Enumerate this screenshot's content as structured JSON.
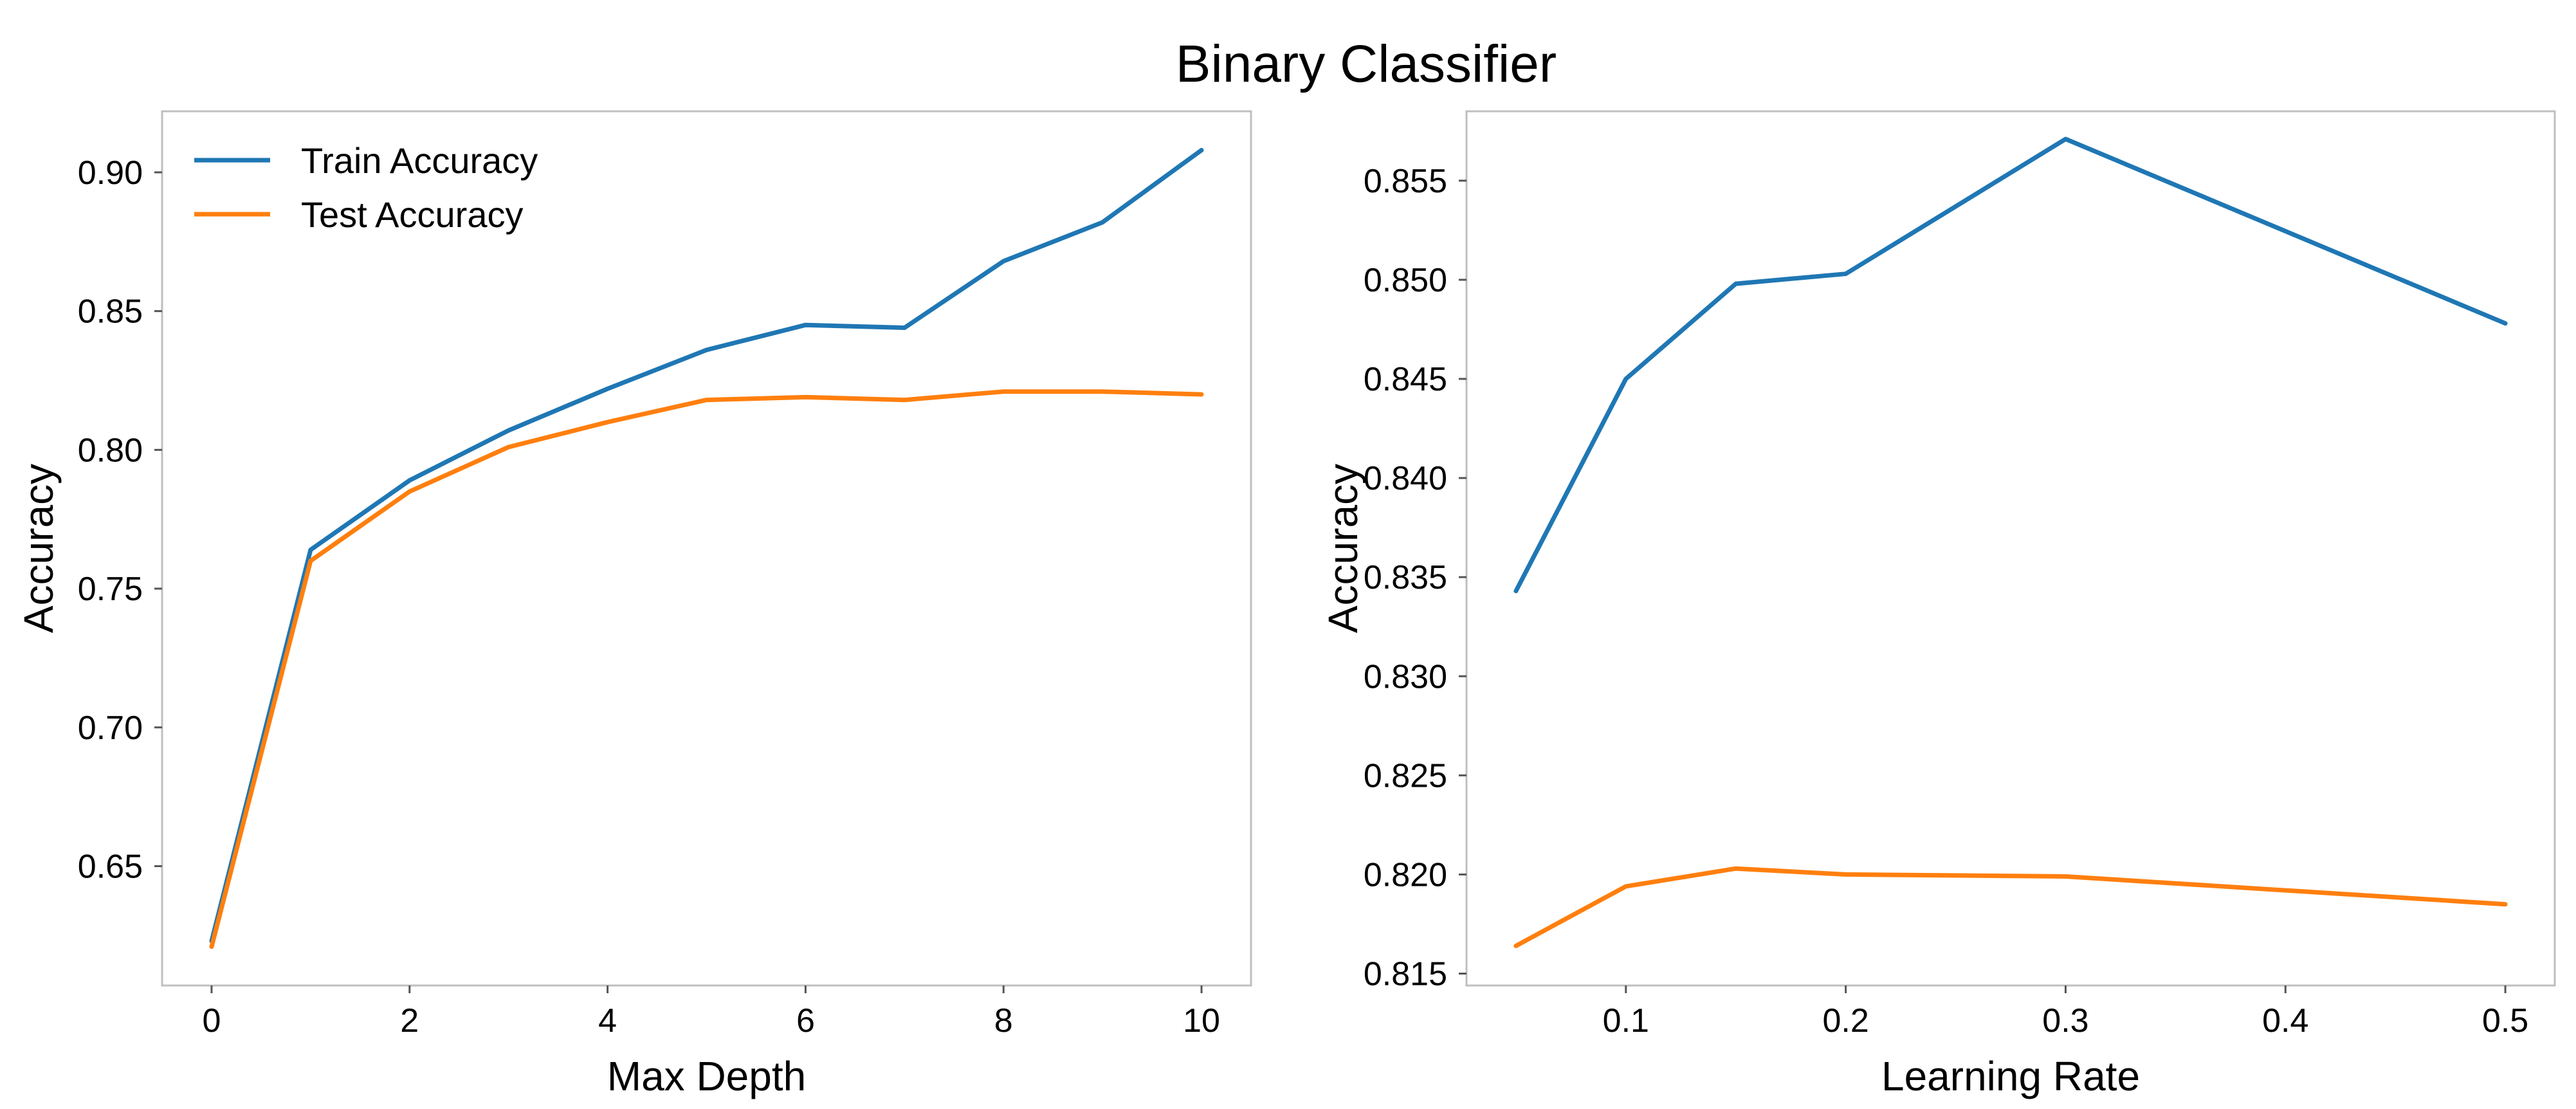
{
  "title": "Binary Classifier",
  "colors": {
    "train": "#1f77b4",
    "test": "#ff7f0e",
    "frame": "#bfbfbf",
    "tick": "#555555"
  },
  "legend": {
    "placement": "top-left",
    "entries": [
      "Train Accuracy",
      "Test Accuracy"
    ]
  },
  "chart_data": [
    {
      "type": "line",
      "title": "",
      "xlabel": "Max Depth",
      "ylabel": "Accuracy",
      "xlim": [
        -0.5,
        10.5
      ],
      "ylim": [
        0.607,
        0.922
      ],
      "xticks": [
        0,
        2,
        4,
        6,
        8,
        10
      ],
      "xtick_labels": [
        "0",
        "2",
        "4",
        "6",
        "8",
        "10"
      ],
      "yticks": [
        0.65,
        0.7,
        0.75,
        0.8,
        0.85,
        0.9
      ],
      "ytick_labels": [
        "0.65",
        "0.70",
        "0.75",
        "0.80",
        "0.85",
        "0.90"
      ],
      "grid": false,
      "legend": "top-left",
      "x": [
        0,
        1,
        2,
        3,
        4,
        5,
        6,
        7,
        8,
        9,
        10
      ],
      "series": [
        {
          "name": "Train Accuracy",
          "color_key": "train",
          "values": [
            0.623,
            0.764,
            0.789,
            0.807,
            0.822,
            0.836,
            0.845,
            0.844,
            0.868,
            0.882,
            0.908
          ]
        },
        {
          "name": "Test Accuracy",
          "color_key": "test",
          "values": [
            0.621,
            0.76,
            0.785,
            0.801,
            0.81,
            0.818,
            0.819,
            0.818,
            0.821,
            0.821,
            0.82
          ]
        }
      ]
    },
    {
      "type": "line",
      "title": "",
      "xlabel": "Learning Rate",
      "ylabel": "Accuracy",
      "xlim": [
        0.0275,
        0.5225
      ],
      "ylim": [
        0.8144,
        0.8585
      ],
      "xticks": [
        0.1,
        0.2,
        0.3,
        0.4,
        0.5
      ],
      "xtick_labels": [
        "0.1",
        "0.2",
        "0.3",
        "0.4",
        "0.5"
      ],
      "yticks": [
        0.815,
        0.82,
        0.825,
        0.83,
        0.835,
        0.84,
        0.845,
        0.85,
        0.855
      ],
      "ytick_labels": [
        "0.815",
        "0.820",
        "0.825",
        "0.830",
        "0.835",
        "0.840",
        "0.845",
        "0.850",
        "0.855"
      ],
      "grid": false,
      "legend": "none",
      "x": [
        0.05,
        0.1,
        0.15,
        0.2,
        0.3,
        0.5
      ],
      "series": [
        {
          "name": "Train Accuracy",
          "color_key": "train",
          "values": [
            0.8343,
            0.845,
            0.8498,
            0.8503,
            0.8571,
            0.8478
          ]
        },
        {
          "name": "Test Accuracy",
          "color_key": "test",
          "values": [
            0.8164,
            0.8194,
            0.8203,
            0.82,
            0.8199,
            0.8185
          ]
        }
      ]
    }
  ]
}
